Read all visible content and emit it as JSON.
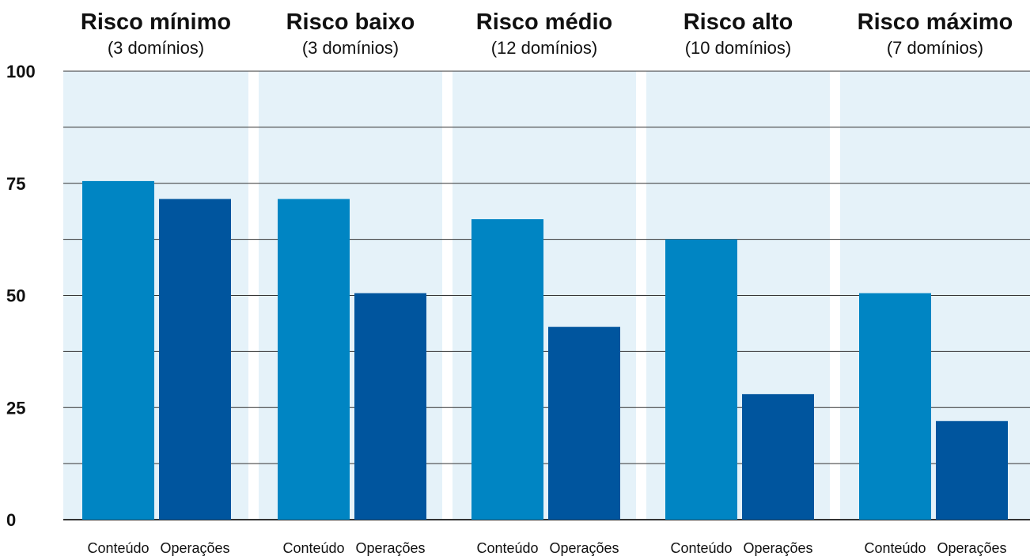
{
  "chart_data": {
    "type": "bar",
    "groups": [
      {
        "title": "Risco mínimo",
        "subtitle": "(3 domínios)"
      },
      {
        "title": "Risco baixo",
        "subtitle": "(3 domínios)"
      },
      {
        "title": "Risco médio",
        "subtitle": "(12 domínios)"
      },
      {
        "title": "Risco alto",
        "subtitle": "(10 domínios)"
      },
      {
        "title": "Risco máximo",
        "subtitle": "(7 domínios)"
      }
    ],
    "bar_labels": [
      "Conteúdo",
      "Operações"
    ],
    "series": [
      {
        "values": [
          75.5,
          71.5,
          67,
          62.5,
          50.5
        ],
        "color": "#0085c3"
      },
      {
        "values": [
          71.5,
          50.5,
          43,
          28,
          22
        ],
        "color": "#00559e"
      }
    ],
    "ylim": [
      0,
      100
    ],
    "y_ticks": [
      "0",
      "25",
      "50",
      "75",
      "100"
    ],
    "y_tick_values": [
      0,
      25,
      50,
      75,
      100
    ],
    "gridline_step": 12.5,
    "panel_color": "#e5f2f9",
    "gridline_color": "#333333"
  }
}
